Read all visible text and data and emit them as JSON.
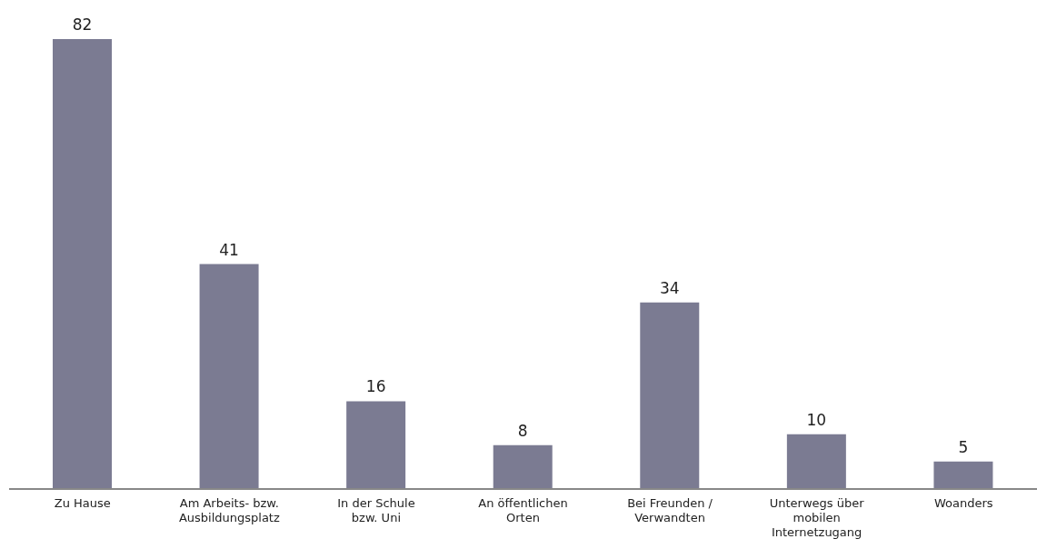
{
  "chart_data": {
    "type": "bar",
    "categories": [
      "Zu Hause",
      "Am Arbeits- bzw. Ausbildungsplatz",
      "In der Schule bzw. Uni",
      "An öffentlichen Orten",
      "Bei Freunden / Verwandten",
      "Unterwegs über mobilen Internetzugang",
      "Woanders"
    ],
    "values": [
      82,
      41,
      16,
      8,
      34,
      10,
      5
    ],
    "color": "#7b7b92",
    "data_labels": true
  }
}
